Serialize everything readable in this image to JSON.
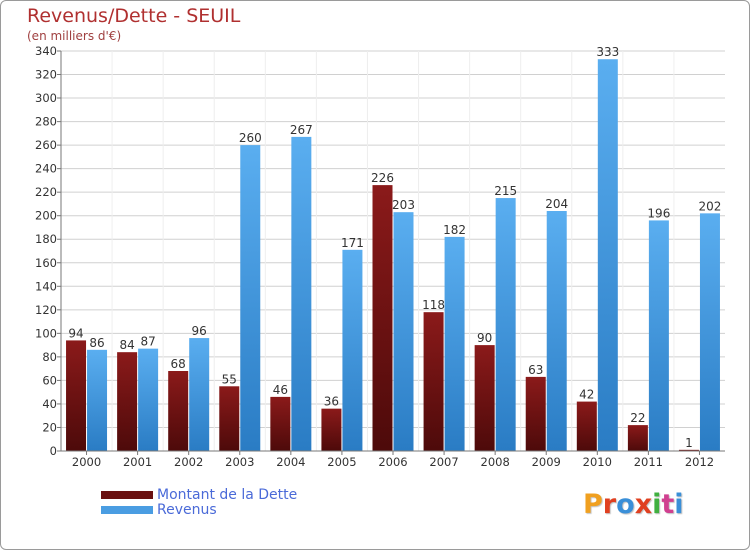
{
  "title": "Revenus/Dette - SEUIL",
  "subtitle": "(en milliers d'€)",
  "colors": {
    "dette_top": "#8b1a1a",
    "dette_bottom": "#4d0a0a",
    "revenus_top": "#5aaef0",
    "revenus_bottom": "#2a7cc4",
    "grid": "#d0d0d0",
    "axis_text": "#333333",
    "legend_text": "#4a6ad8",
    "title": "#b03030"
  },
  "legend": {
    "items": [
      {
        "label": "Montant de la Dette",
        "color": "#6a1010"
      },
      {
        "label": "Revenus",
        "color": "#4a9de2"
      }
    ]
  },
  "logo": {
    "text": "Proxiti",
    "letter_colors": [
      "#f0a020",
      "#e04020",
      "#3a8fd8",
      "#e04020",
      "#40b040",
      "#d04090",
      "#3a8fd8"
    ]
  },
  "chart_data": {
    "type": "bar",
    "categories": [
      "2000",
      "2001",
      "2002",
      "2003",
      "2004",
      "2005",
      "2006",
      "2007",
      "2008",
      "2009",
      "2010",
      "2011",
      "2012"
    ],
    "series": [
      {
        "name": "Montant de la Dette",
        "values": [
          94,
          84,
          68,
          55,
          46,
          36,
          226,
          118,
          90,
          63,
          42,
          22,
          1
        ]
      },
      {
        "name": "Revenus",
        "values": [
          86,
          87,
          96,
          260,
          267,
          171,
          203,
          182,
          215,
          204,
          333,
          196,
          202
        ]
      }
    ],
    "title": "Revenus/Dette - SEUIL",
    "subtitle": "(en milliers d'€)",
    "xlabel": "",
    "ylabel": "",
    "ylim": [
      0,
      340
    ],
    "ytick_step": 20,
    "grid": true,
    "legend_position": "bottom-left"
  }
}
